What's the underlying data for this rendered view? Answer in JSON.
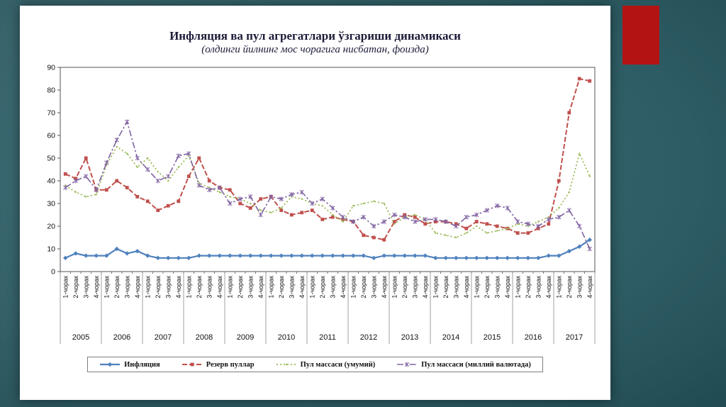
{
  "slide": {
    "background_color": "#2e5c64",
    "panel_color": "#ffffff",
    "accent_block_color": "#b31312"
  },
  "chart_data": {
    "type": "line",
    "title": "Инфляция ва пул агрегатлари ўзгариши динамикаси",
    "subtitle": "(олдинги йилнинг мос чорагига нисбатан, фоизда)",
    "ylim": [
      0,
      90
    ],
    "yticks": [
      0,
      10,
      20,
      30,
      40,
      50,
      60,
      70,
      80,
      90
    ],
    "grid": false,
    "legend_position": "bottom",
    "quarters": [
      "1-чорак",
      "2-чорак",
      "3-чорак",
      "4-чорак"
    ],
    "years": [
      "2005",
      "2006",
      "2007",
      "2008",
      "2009",
      "2010",
      "2011",
      "2012",
      "2013",
      "2014",
      "2015",
      "2016",
      "2017"
    ],
    "series": [
      {
        "name": "Инфляция",
        "color": "#4f81bd",
        "marker": "diamond",
        "style": "solid",
        "width": 2.2,
        "values": [
          6,
          8,
          7,
          7,
          7,
          10,
          8,
          9,
          7,
          6,
          6,
          6,
          6,
          7,
          7,
          7,
          7,
          7,
          7,
          7,
          7,
          7,
          7,
          7,
          7,
          7,
          7,
          7,
          7,
          7,
          6,
          7,
          7,
          7,
          7,
          7,
          6,
          6,
          6,
          6,
          6,
          6,
          6,
          6,
          6,
          6,
          6,
          7,
          7,
          9,
          11,
          14
        ]
      },
      {
        "name": "Резерв пуллар",
        "color": "#c0504d",
        "marker": "square",
        "style": "dashed",
        "width": 2,
        "values": [
          43,
          41,
          50,
          36,
          36,
          40,
          37,
          33,
          31,
          27,
          29,
          31,
          42,
          50,
          40,
          37,
          36,
          30,
          28,
          32,
          33,
          27,
          25,
          26,
          27,
          23,
          24,
          23,
          22,
          16,
          15,
          14,
          22,
          25,
          24,
          21,
          22,
          22,
          21,
          19,
          22,
          21,
          20,
          19,
          17,
          17,
          19,
          21,
          40,
          70,
          85,
          84
        ]
      },
      {
        "name": "Пул массаси (умумий)",
        "color": "#9bbb59",
        "marker": "dot",
        "style": "dotted",
        "width": 1.8,
        "values": [
          38,
          35,
          33,
          34,
          47,
          55,
          52,
          46,
          50,
          44,
          40,
          46,
          51,
          39,
          37,
          35,
          33,
          32,
          30,
          27,
          26,
          28,
          33,
          32,
          30,
          29,
          25,
          22,
          29,
          30,
          31,
          30,
          21,
          24,
          25,
          23,
          17,
          16,
          15,
          17,
          20,
          17,
          18,
          19,
          21,
          20,
          22,
          24,
          28,
          35,
          52,
          42
        ]
      },
      {
        "name": "Пул массаси (миллий валютада)",
        "color": "#8064a2",
        "marker": "x",
        "style": "dashdot",
        "width": 1.6,
        "values": [
          37,
          40,
          42,
          36,
          48,
          58,
          66,
          50,
          45,
          40,
          42,
          51,
          52,
          38,
          36,
          37,
          30,
          32,
          33,
          25,
          33,
          32,
          34,
          35,
          30,
          32,
          28,
          24,
          22,
          24,
          20,
          22,
          25,
          24,
          22,
          23,
          23,
          22,
          20,
          24,
          25,
          27,
          29,
          28,
          22,
          21,
          20,
          23,
          24,
          27,
          20,
          10
        ]
      }
    ]
  }
}
